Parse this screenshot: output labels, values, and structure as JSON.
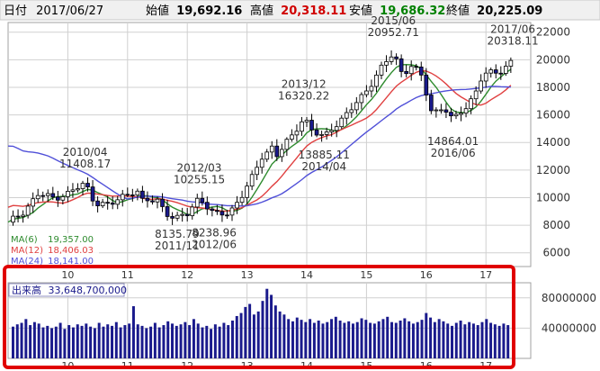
{
  "header": {
    "date_label": "日付",
    "date_value": "2017/06/27",
    "open_label": "始値",
    "open_value": "19,692.16",
    "high_label": "高値",
    "high_value": "20,318.11",
    "low_label": "安値",
    "low_value": "19,686.32",
    "close_label": "終値",
    "close_value": "20,225.09"
  },
  "colors": {
    "up_candle": "#ffffff",
    "down_candle": "#1a1a8c",
    "candle_outline": "#000000",
    "ma6": "#2e8b2e",
    "ma12": "#e04040",
    "ma24": "#5050d8",
    "volume_bar": "#1a1a8c",
    "high_value": "#d00000",
    "low_value": "#008000",
    "highlight_box": "#e00000",
    "grid": "#d0d0d0"
  },
  "legend": [
    {
      "label": "MA(6)",
      "value": "19,357.00",
      "color_key": "ma6"
    },
    {
      "label": "MA(12)",
      "value": "18,406.03",
      "color_key": "ma12"
    },
    {
      "label": "MA(24)",
      "value": "18,141.00",
      "color_key": "ma24"
    }
  ],
  "volume_legend": {
    "label": "出来高",
    "value": "33,648,700,000"
  },
  "annotations": [
    {
      "lines": [
        "2010/04",
        "11408.17"
      ],
      "x": 2010.29,
      "y": 11408.17,
      "pos": "above"
    },
    {
      "lines": [
        "2012/03",
        "10255.15"
      ],
      "x": 2012.2,
      "y": 10255.15,
      "pos": "above"
    },
    {
      "lines": [
        "8135.79",
        "2011/11"
      ],
      "x": 2011.83,
      "y": 8135.79,
      "pos": "below"
    },
    {
      "lines": [
        "8238.96",
        "2012/06"
      ],
      "x": 2012.45,
      "y": 8238.96,
      "pos": "below"
    },
    {
      "lines": [
        "2013/12",
        "16320.22"
      ],
      "x": 2013.95,
      "y": 16320.22,
      "pos": "above"
    },
    {
      "lines": [
        "13885.11",
        "2014/04"
      ],
      "x": 2014.29,
      "y": 13885.11,
      "pos": "below"
    },
    {
      "lines": [
        "2015/06",
        "20952.71"
      ],
      "x": 2015.45,
      "y": 20952.71,
      "pos": "above"
    },
    {
      "lines": [
        "14864.01",
        "2016/06"
      ],
      "x": 2016.45,
      "y": 14864.01,
      "pos": "below"
    },
    {
      "lines": [
        "2017/06",
        "20318.11"
      ],
      "x": 2017.45,
      "y": 20318.11,
      "pos": "above"
    }
  ],
  "chart_data": [
    {
      "type": "candlestick",
      "title": "",
      "xlim": [
        2009.0,
        2017.75
      ],
      "ylim": [
        5000,
        22700
      ],
      "y_ticks": [
        6000,
        8000,
        10000,
        12000,
        14000,
        16000,
        18000,
        20000,
        22000
      ],
      "y_tick_labels": [
        "6000",
        "8000",
        "10000",
        "12000",
        "14000",
        "16000",
        "18000",
        "20000",
        "22000"
      ],
      "x_ticks": [
        2010,
        2011,
        2012,
        2013,
        2014,
        2015,
        2016,
        2017
      ],
      "x_tick_labels": [
        "10",
        "11",
        "12",
        "13",
        "14",
        "15",
        "16",
        "17"
      ],
      "grid": true,
      "monthly_close_anchors": [
        [
          2009.0,
          8100
        ],
        [
          2009.25,
          9000
        ],
        [
          2009.5,
          10200
        ],
        [
          2009.75,
          10000
        ],
        [
          2010.0,
          10300
        ],
        [
          2010.29,
          11000
        ],
        [
          2010.45,
          9700
        ],
        [
          2010.7,
          9400
        ],
        [
          2010.95,
          10200
        ],
        [
          2011.15,
          10600
        ],
        [
          2011.25,
          9700
        ],
        [
          2011.5,
          9800
        ],
        [
          2011.7,
          8700
        ],
        [
          2011.83,
          8450
        ],
        [
          2012.0,
          8800
        ],
        [
          2012.2,
          10100
        ],
        [
          2012.45,
          8700
        ],
        [
          2012.7,
          8900
        ],
        [
          2012.95,
          10400
        ],
        [
          2013.1,
          11500
        ],
        [
          2013.25,
          13000
        ],
        [
          2013.42,
          13700
        ],
        [
          2013.5,
          13100
        ],
        [
          2013.75,
          14400
        ],
        [
          2013.95,
          15900
        ],
        [
          2014.1,
          14800
        ],
        [
          2014.29,
          14300
        ],
        [
          2014.45,
          15200
        ],
        [
          2014.7,
          16200
        ],
        [
          2014.95,
          17400
        ],
        [
          2015.2,
          19200
        ],
        [
          2015.45,
          20400
        ],
        [
          2015.6,
          18900
        ],
        [
          2015.75,
          19700
        ],
        [
          2015.9,
          19000
        ],
        [
          2016.0,
          17500
        ],
        [
          2016.1,
          16000
        ],
        [
          2016.3,
          16700
        ],
        [
          2016.45,
          15600
        ],
        [
          2016.65,
          16400
        ],
        [
          2016.8,
          17400
        ],
        [
          2016.95,
          19100
        ],
        [
          2017.2,
          18900
        ],
        [
          2017.35,
          19600
        ],
        [
          2017.48,
          20200
        ]
      ],
      "series": [
        {
          "name": "MA(6)",
          "color_key": "ma6"
        },
        {
          "name": "MA(12)",
          "color_key": "ma12"
        },
        {
          "name": "MA(24)",
          "color_key": "ma24"
        }
      ]
    },
    {
      "type": "bar",
      "title": "",
      "xlim": [
        2009.0,
        2017.75
      ],
      "ylim": [
        0,
        100000000
      ],
      "y_ticks": [
        40000000,
        80000000
      ],
      "y_tick_labels": [
        "40000000",
        "80000000"
      ],
      "x_ticks": [
        2010,
        2011,
        2012,
        2013,
        2014,
        2015,
        2016,
        2017
      ],
      "x_tick_labels": [
        "10",
        "11",
        "12",
        "13",
        "14",
        "15",
        "16",
        "17"
      ],
      "grid": true,
      "values": [
        42000000,
        45000000,
        47000000,
        52000000,
        44000000,
        48000000,
        46000000,
        41000000,
        43000000,
        40000000,
        42000000,
        47000000,
        39000000,
        44000000,
        41000000,
        45000000,
        43000000,
        46000000,
        42000000,
        40000000,
        47000000,
        42000000,
        45000000,
        43000000,
        48000000,
        41000000,
        44000000,
        46000000,
        69000000,
        45000000,
        43000000,
        40000000,
        42000000,
        47000000,
        41000000,
        44000000,
        49000000,
        46000000,
        43000000,
        45000000,
        48000000,
        44000000,
        52000000,
        46000000,
        41000000,
        43000000,
        39000000,
        45000000,
        42000000,
        47000000,
        44000000,
        50000000,
        56000000,
        60000000,
        68000000,
        72000000,
        58000000,
        62000000,
        76000000,
        92000000,
        84000000,
        70000000,
        62000000,
        58000000,
        52000000,
        49000000,
        54000000,
        51000000,
        48000000,
        52000000,
        47000000,
        50000000,
        46000000,
        48000000,
        52000000,
        55000000,
        50000000,
        47000000,
        49000000,
        46000000,
        48000000,
        53000000,
        51000000,
        47000000,
        46000000,
        49000000,
        52000000,
        55000000,
        48000000,
        47000000,
        50000000,
        53000000,
        49000000,
        46000000,
        48000000,
        51000000,
        60000000,
        54000000,
        48000000,
        52000000,
        49000000,
        46000000,
        43000000,
        47000000,
        50000000,
        45000000,
        48000000,
        46000000,
        44000000,
        48000000,
        52000000,
        47000000,
        45000000,
        43000000,
        46000000,
        44000000
      ],
      "series": [
        {
          "name": "出来高",
          "color_key": "volume_bar"
        }
      ]
    }
  ]
}
